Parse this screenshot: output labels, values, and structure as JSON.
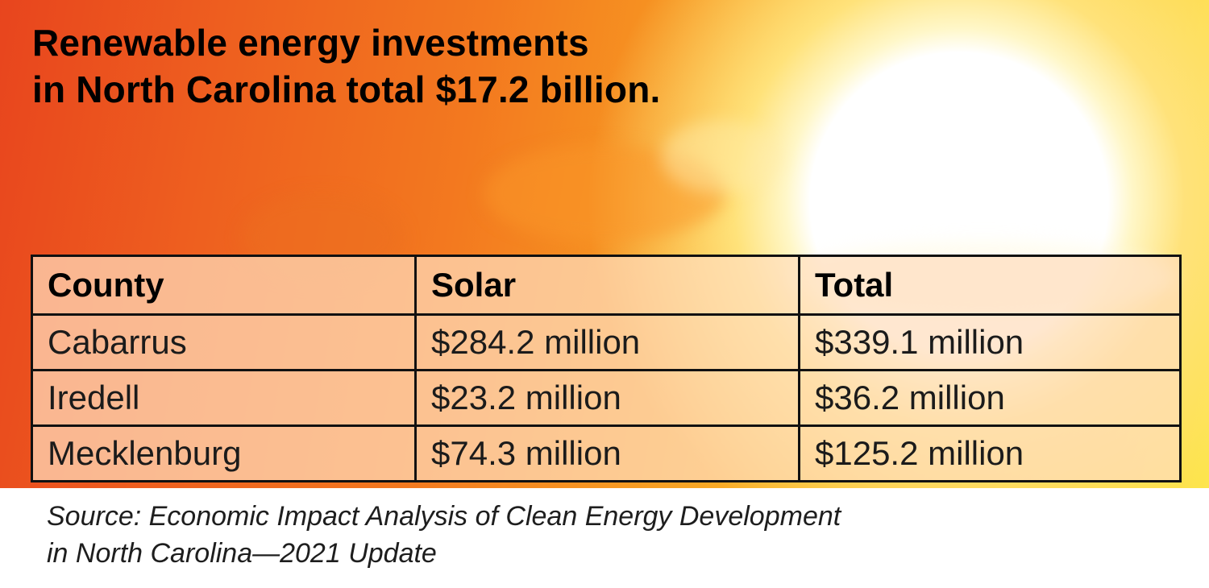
{
  "title": {
    "line1": "Renewable energy investments",
    "line2": "in North Carolina total $17.2 billion."
  },
  "source": {
    "line1": "Source:  Economic Impact Analysis of Clean Energy Development",
    "line2": "in North Carolina—2021 Update"
  },
  "colors": {
    "background_warm": "#ee5f1f",
    "background_sun": "#fde54e",
    "table_fill": "#ffdebe",
    "table_border": "#111111"
  },
  "chart_data": {
    "type": "table",
    "columns": [
      "County",
      "Solar",
      "Total"
    ],
    "rows": [
      [
        "Cabarrus",
        "$284.2 million",
        "$339.1 million"
      ],
      [
        "Iredell",
        "$23.2 million",
        "$36.2 million"
      ],
      [
        "Mecklenburg",
        "$74.3 million",
        "$125.2 million"
      ]
    ]
  }
}
